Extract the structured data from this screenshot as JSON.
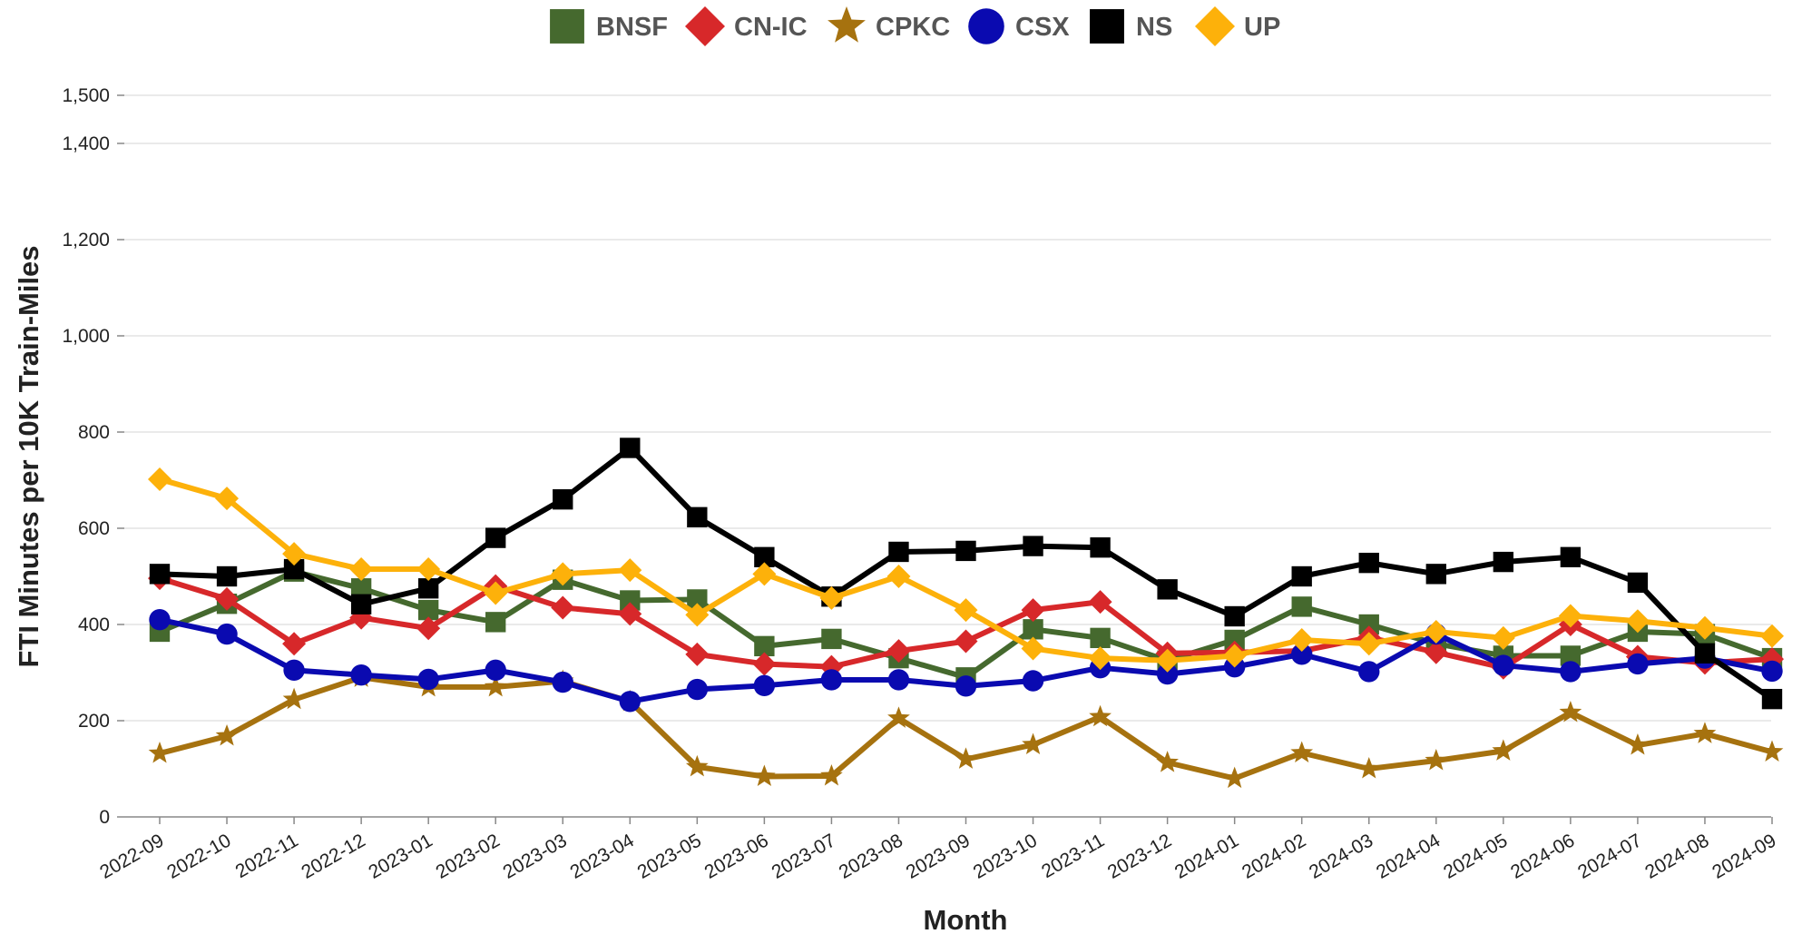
{
  "chart_data": {
    "type": "line",
    "title": "",
    "xlabel": "Month",
    "ylabel": "FTI Minutes per 10K Train-Miles",
    "ylim": [
      0,
      1500
    ],
    "yticks": [
      0,
      200,
      400,
      600,
      800,
      1000,
      1200,
      1400,
      1500
    ],
    "ytick_labels": [
      "0",
      "200",
      "400",
      "600",
      "800",
      "1,000",
      "1,200",
      "1,400",
      "1,500"
    ],
    "grid": true,
    "legend_position": "top-center",
    "x": [
      "2022-09",
      "2022-10",
      "2022-11",
      "2022-12",
      "2023-01",
      "2023-02",
      "2023-03",
      "2023-04",
      "2023-05",
      "2023-06",
      "2023-07",
      "2023-08",
      "2023-09",
      "2023-10",
      "2023-11",
      "2023-12",
      "2024-01",
      "2024-02",
      "2024-03",
      "2024-04",
      "2024-05",
      "2024-06",
      "2024-07",
      "2024-08",
      "2024-09"
    ],
    "series": [
      {
        "name": "BNSF",
        "color": "#45692e",
        "marker": "square",
        "values": [
          385,
          443,
          510,
          475,
          430,
          405,
          493,
          450,
          452,
          355,
          370,
          330,
          290,
          390,
          372,
          325,
          368,
          437,
          400,
          360,
          335,
          335,
          385,
          380,
          330
        ]
      },
      {
        "name": "CN-IC",
        "color": "#d7282a",
        "marker": "diamond",
        "values": [
          496,
          453,
          360,
          414,
          392,
          480,
          435,
          422,
          338,
          318,
          312,
          345,
          365,
          430,
          447,
          340,
          342,
          345,
          373,
          342,
          310,
          400,
          333,
          320,
          328
        ]
      },
      {
        "name": "CPKC",
        "color": "#a6720f",
        "marker": "star",
        "values": [
          132,
          168,
          244,
          290,
          270,
          270,
          282,
          240,
          104,
          84,
          85,
          205,
          120,
          150,
          208,
          113,
          80,
          133,
          100,
          117,
          137,
          217,
          149,
          173,
          135
        ]
      },
      {
        "name": "CSX",
        "color": "#0a0ab0",
        "marker": "circle",
        "values": [
          410,
          380,
          305,
          295,
          286,
          305,
          280,
          240,
          265,
          273,
          285,
          285,
          272,
          283,
          310,
          297,
          312,
          338,
          302,
          380,
          315,
          302,
          318,
          330,
          303
        ]
      },
      {
        "name": "NS",
        "color": "#000000",
        "marker": "square",
        "values": [
          505,
          500,
          515,
          442,
          475,
          580,
          660,
          767,
          623,
          540,
          458,
          551,
          553,
          563,
          560,
          473,
          417,
          500,
          528,
          505,
          530,
          540,
          487,
          340,
          245
        ]
      },
      {
        "name": "UP",
        "color": "#fdb10a",
        "marker": "diamond",
        "values": [
          702,
          662,
          547,
          515,
          515,
          465,
          505,
          513,
          420,
          505,
          455,
          500,
          430,
          350,
          330,
          325,
          335,
          368,
          360,
          385,
          372,
          418,
          407,
          393,
          376
        ]
      }
    ]
  }
}
